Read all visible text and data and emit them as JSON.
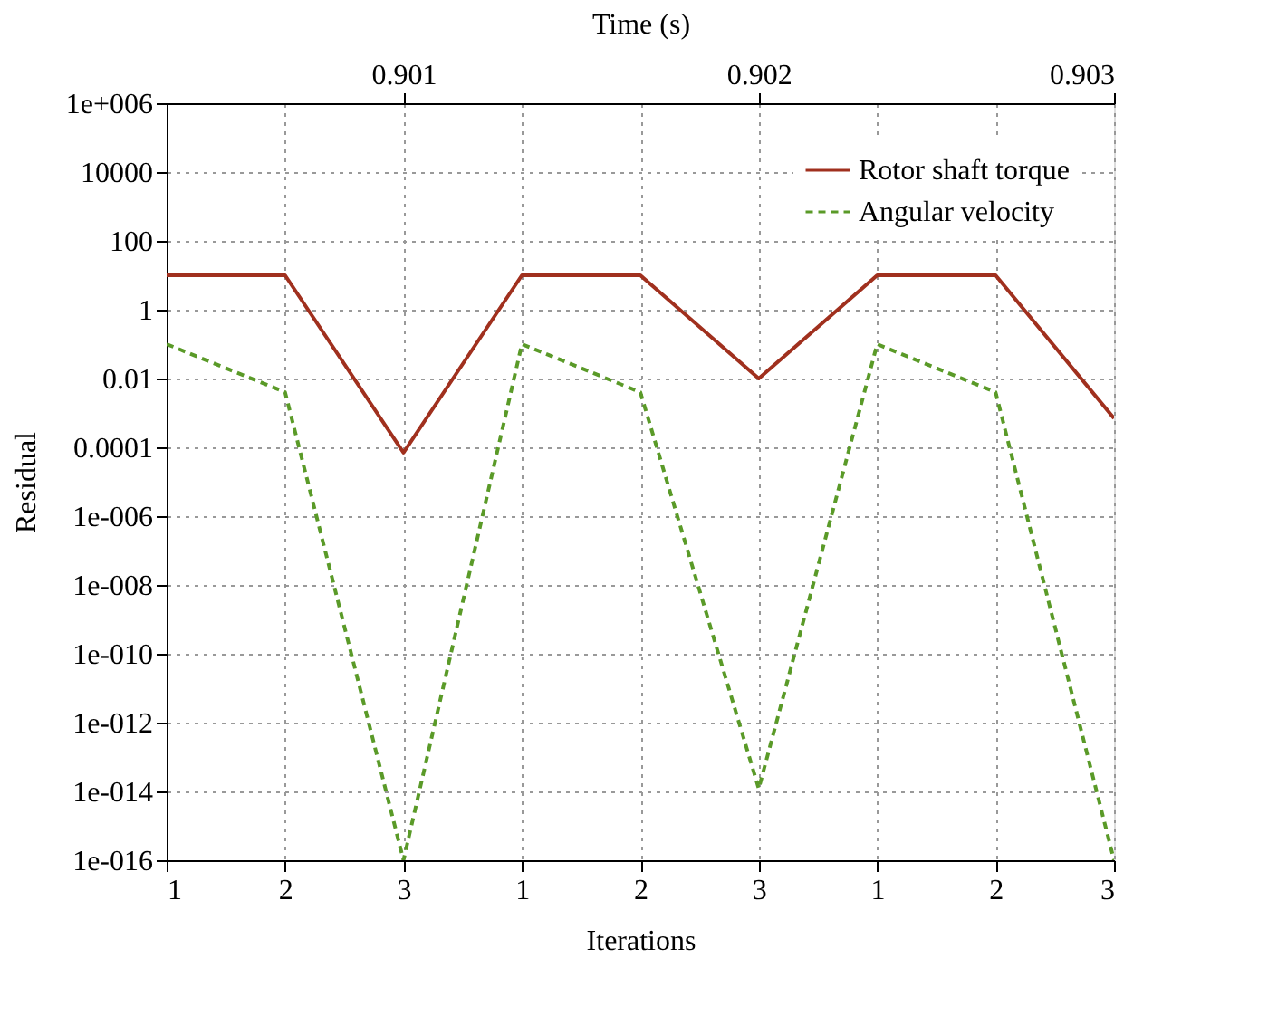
{
  "chart_data": {
    "type": "line",
    "xlabel": "Iterations",
    "ylabel": "Residual",
    "x2label": "Time (s)",
    "categories": [
      "1",
      "2",
      "3",
      "1",
      "2",
      "3",
      "1",
      "2",
      "3"
    ],
    "x2lim": [
      0.9003333,
      0.903
    ],
    "x2ticks": [
      0.901,
      0.902,
      0.903
    ],
    "log": "y",
    "ylim": [
      1e-16,
      1000000.0
    ],
    "yticks": [
      {
        "value": 1e-16,
        "label": "1e-016"
      },
      {
        "value": 1e-14,
        "label": "1e-014"
      },
      {
        "value": 1e-12,
        "label": "1e-012"
      },
      {
        "value": 1e-10,
        "label": "1e-010"
      },
      {
        "value": 1e-08,
        "label": "1e-008"
      },
      {
        "value": 1e-06,
        "label": "1e-006"
      },
      {
        "value": 0.0001,
        "label": "0.0001"
      },
      {
        "value": 0.01,
        "label": "0.01"
      },
      {
        "value": 1,
        "label": "1"
      },
      {
        "value": 100,
        "label": "100"
      },
      {
        "value": 10000,
        "label": "10000"
      },
      {
        "value": 1000000.0,
        "label": "1e+006"
      }
    ],
    "grid": true,
    "legend": "top right",
    "series": [
      {
        "name": "Rotor shaft torque",
        "color": "#a0301e",
        "line_style": "solid",
        "values": [
          10,
          10,
          7e-05,
          10,
          10,
          0.01,
          10,
          10,
          0.0007
        ]
      },
      {
        "name": "Angular velocity",
        "color": "#5a9a28",
        "line_style": "dashed",
        "values": [
          0.1,
          0.004,
          1e-16,
          0.1,
          0.004,
          1.2e-14,
          0.1,
          0.004,
          1e-16
        ]
      }
    ]
  }
}
